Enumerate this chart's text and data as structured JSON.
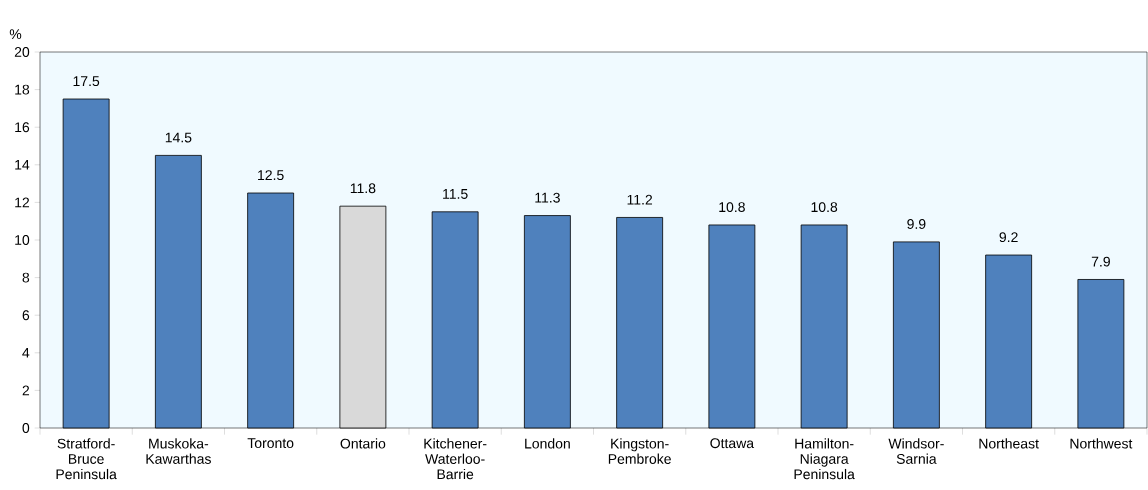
{
  "chart_data": {
    "type": "bar",
    "ylabel": "%",
    "categories": [
      "Stratford-Bruce Peninsula",
      "Muskoka-Kawarthas",
      "Toronto",
      "Ontario",
      "Kitchener-Waterloo-Barrie",
      "London",
      "Kingston-Pembroke",
      "Ottawa",
      "Hamilton-Niagara Peninsula",
      "Windsor-Sarnia",
      "Northeast",
      "Northwest"
    ],
    "values": [
      17.5,
      14.5,
      12.5,
      11.8,
      11.5,
      11.3,
      11.2,
      10.8,
      10.8,
      9.9,
      9.2,
      7.9
    ],
    "colors": [
      "#4f81bd",
      "#4f81bd",
      "#4f81bd",
      "#d9d9d9",
      "#4f81bd",
      "#4f81bd",
      "#4f81bd",
      "#4f81bd",
      "#4f81bd",
      "#4f81bd",
      "#4f81bd",
      "#4f81bd"
    ],
    "ylim": [
      0,
      20
    ],
    "yticks": [
      0,
      2,
      4,
      6,
      8,
      10,
      12,
      14,
      16,
      18,
      20
    ],
    "data_labels": true,
    "grid": false
  }
}
